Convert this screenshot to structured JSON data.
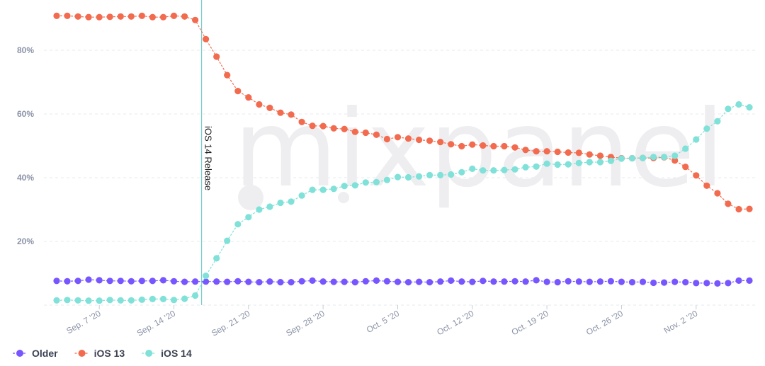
{
  "chart_data": {
    "type": "line",
    "title": "",
    "xlabel": "",
    "ylabel": "",
    "ylim": [
      0,
      95
    ],
    "grid": true,
    "legend_position": "bottom-left",
    "y_ticks": [
      "20%",
      "40%",
      "60%",
      "80%"
    ],
    "x_ticks": [
      "Sep. 7 '20",
      "Sep. 14 '20",
      "Sep. 21 '20",
      "Sep. 28 '20",
      "Oct. 5 '20",
      "Oct. 12 '20",
      "Oct. 19 '20",
      "Oct. 26 '20",
      "Nov. 2 '20"
    ],
    "x": [
      "2020-09-03",
      "2020-09-04",
      "2020-09-05",
      "2020-09-06",
      "2020-09-07",
      "2020-09-08",
      "2020-09-09",
      "2020-09-10",
      "2020-09-11",
      "2020-09-12",
      "2020-09-13",
      "2020-09-14",
      "2020-09-15",
      "2020-09-16",
      "2020-09-17",
      "2020-09-18",
      "2020-09-19",
      "2020-09-20",
      "2020-09-21",
      "2020-09-22",
      "2020-09-23",
      "2020-09-24",
      "2020-09-25",
      "2020-09-26",
      "2020-09-27",
      "2020-09-28",
      "2020-09-29",
      "2020-09-30",
      "2020-10-01",
      "2020-10-02",
      "2020-10-03",
      "2020-10-04",
      "2020-10-05",
      "2020-10-06",
      "2020-10-07",
      "2020-10-08",
      "2020-10-09",
      "2020-10-10",
      "2020-10-11",
      "2020-10-12",
      "2020-10-13",
      "2020-10-14",
      "2020-10-15",
      "2020-10-16",
      "2020-10-17",
      "2020-10-18",
      "2020-10-19",
      "2020-10-20",
      "2020-10-21",
      "2020-10-22",
      "2020-10-23",
      "2020-10-24",
      "2020-10-25",
      "2020-10-26",
      "2020-10-27",
      "2020-10-28",
      "2020-10-29",
      "2020-10-30",
      "2020-10-31",
      "2020-11-01",
      "2020-11-02",
      "2020-11-03",
      "2020-11-04",
      "2020-11-05",
      "2020-11-06",
      "2020-11-07"
    ],
    "series": [
      {
        "name": "Older",
        "color": "#7856ff",
        "values": [
          7.6,
          7.5,
          7.6,
          8.0,
          7.8,
          7.6,
          7.6,
          7.5,
          7.6,
          7.6,
          7.8,
          7.5,
          7.3,
          7.4,
          7.4,
          7.4,
          7.3,
          7.5,
          7.3,
          7.2,
          7.4,
          7.2,
          7.2,
          7.5,
          7.7,
          7.4,
          7.3,
          7.3,
          7.2,
          7.5,
          7.7,
          7.5,
          7.3,
          7.2,
          7.3,
          7.2,
          7.4,
          7.7,
          7.4,
          7.3,
          7.6,
          7.4,
          7.4,
          7.5,
          7.4,
          7.8,
          7.3,
          7.2,
          7.5,
          7.4,
          7.3,
          7.4,
          7.5,
          7.3,
          7.2,
          7.3,
          7.0,
          7.1,
          7.3,
          7.2,
          6.9,
          6.9,
          6.8,
          6.9,
          7.7,
          7.7
        ]
      },
      {
        "name": "iOS 13",
        "color": "#f26b4f",
        "values": [
          90.8,
          90.8,
          90.6,
          90.4,
          90.4,
          90.5,
          90.6,
          90.6,
          90.8,
          90.4,
          90.4,
          90.8,
          90.6,
          89.5,
          83.5,
          78.0,
          72.2,
          67.2,
          65.2,
          63.0,
          61.9,
          60.4,
          59.8,
          57.5,
          56.3,
          56.2,
          55.5,
          55.3,
          54.4,
          54.1,
          53.5,
          52.1,
          52.7,
          52.3,
          51.9,
          51.6,
          51.2,
          50.5,
          49.9,
          50.4,
          50.1,
          49.9,
          49.9,
          49.5,
          48.7,
          48.3,
          48.3,
          48.1,
          47.9,
          47.8,
          47.3,
          46.9,
          46.5,
          46.1,
          46.1,
          46.2,
          46.2,
          46.4,
          45.4,
          43.4,
          40.7,
          37.5,
          35.1,
          31.8,
          30.1,
          30.2
        ]
      },
      {
        "name": "iOS 14",
        "color": "#80e1d9",
        "values": [
          1.5,
          1.6,
          1.5,
          1.4,
          1.4,
          1.6,
          1.5,
          1.5,
          1.7,
          1.9,
          1.9,
          1.6,
          2.0,
          3.0,
          9.2,
          14.7,
          20.2,
          25.4,
          27.6,
          30.0,
          30.9,
          32.1,
          32.5,
          34.4,
          36.2,
          36.2,
          36.5,
          37.4,
          37.6,
          38.5,
          38.6,
          39.3,
          40.2,
          40.1,
          40.4,
          40.8,
          40.8,
          41.0,
          41.7,
          42.8,
          42.3,
          42.3,
          42.4,
          42.6,
          43.3,
          43.5,
          44.4,
          44.1,
          44.2,
          44.6,
          44.9,
          44.9,
          45.3,
          46.0,
          46.1,
          46.2,
          46.5,
          46.5,
          46.9,
          49.1,
          52.0,
          55.4,
          57.7,
          61.6,
          63.0,
          62.1
        ]
      }
    ],
    "annotation": {
      "text": "iOS 14 Release",
      "date": "2020-09-17"
    },
    "watermark": "mixpanel"
  }
}
